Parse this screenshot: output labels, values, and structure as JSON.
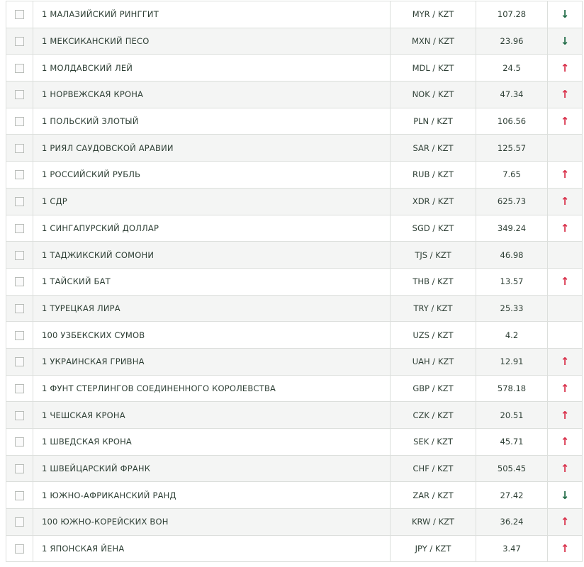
{
  "colors": {
    "up": "#d9304a",
    "down": "#1e6a45",
    "text": "#2f4036"
  },
  "rows": [
    {
      "name": "1 МАЛАЗИЙСКИЙ РИНГГИТ",
      "pair": "MYR / KZT",
      "rate": "107.28",
      "trend": "down"
    },
    {
      "name": "1 МЕКСИКАНСКИЙ ПЕСО",
      "pair": "MXN / KZT",
      "rate": "23.96",
      "trend": "down"
    },
    {
      "name": "1 МОЛДАВСКИЙ ЛЕЙ",
      "pair": "MDL / KZT",
      "rate": "24.5",
      "trend": "up"
    },
    {
      "name": "1 НОРВЕЖСКАЯ КРОНА",
      "pair": "NOK / KZT",
      "rate": "47.34",
      "trend": "up"
    },
    {
      "name": "1 ПОЛЬСКИЙ ЗЛОТЫЙ",
      "pair": "PLN / KZT",
      "rate": "106.56",
      "trend": "up"
    },
    {
      "name": "1 РИЯЛ САУДОВСКОЙ АРАВИИ",
      "pair": "SAR / KZT",
      "rate": "125.57",
      "trend": ""
    },
    {
      "name": "1 РОССИЙСКИЙ РУБЛЬ",
      "pair": "RUB / KZT",
      "rate": "7.65",
      "trend": "up"
    },
    {
      "name": "1 СДР",
      "pair": "XDR / KZT",
      "rate": "625.73",
      "trend": "up"
    },
    {
      "name": "1 СИНГАПУРСКИЙ ДОЛЛАР",
      "pair": "SGD / KZT",
      "rate": "349.24",
      "trend": "up"
    },
    {
      "name": "1 ТАДЖИКСКИЙ СОМОНИ",
      "pair": "TJS / KZT",
      "rate": "46.98",
      "trend": ""
    },
    {
      "name": "1 ТАЙСКИЙ БАТ",
      "pair": "THB / KZT",
      "rate": "13.57",
      "trend": "up"
    },
    {
      "name": "1 ТУРЕЦКАЯ ЛИРА",
      "pair": "TRY / KZT",
      "rate": "25.33",
      "trend": ""
    },
    {
      "name": "100 УЗБЕКСКИХ СУМОВ",
      "pair": "UZS / KZT",
      "rate": "4.2",
      "trend": ""
    },
    {
      "name": "1 УКРАИНСКАЯ ГРИВНА",
      "pair": "UAH / KZT",
      "rate": "12.91",
      "trend": "up"
    },
    {
      "name": "1 ФУНТ СТЕРЛИНГОВ СОЕДИНЕННОГО КОРОЛЕВСТВА",
      "pair": "GBP / KZT",
      "rate": "578.18",
      "trend": "up"
    },
    {
      "name": "1 ЧЕШСКАЯ КРОНА",
      "pair": "CZK / KZT",
      "rate": "20.51",
      "trend": "up"
    },
    {
      "name": "1 ШВЕДСКАЯ КРОНА",
      "pair": "SEK / KZT",
      "rate": "45.71",
      "trend": "up"
    },
    {
      "name": "1 ШВЕЙЦАРСКИЙ ФРАНК",
      "pair": "CHF / KZT",
      "rate": "505.45",
      "trend": "up"
    },
    {
      "name": "1 ЮЖНО-АФРИКАНСКИЙ РАНД",
      "pair": "ZAR / KZT",
      "rate": "27.42",
      "trend": "down"
    },
    {
      "name": "100 ЮЖНО-КОРЕЙСКИХ ВОН",
      "pair": "KRW / KZT",
      "rate": "36.24",
      "trend": "up"
    },
    {
      "name": "1 ЯПОНСКАЯ ЙЕНА",
      "pair": "JPY / KZT",
      "rate": "3.47",
      "trend": "up"
    }
  ]
}
